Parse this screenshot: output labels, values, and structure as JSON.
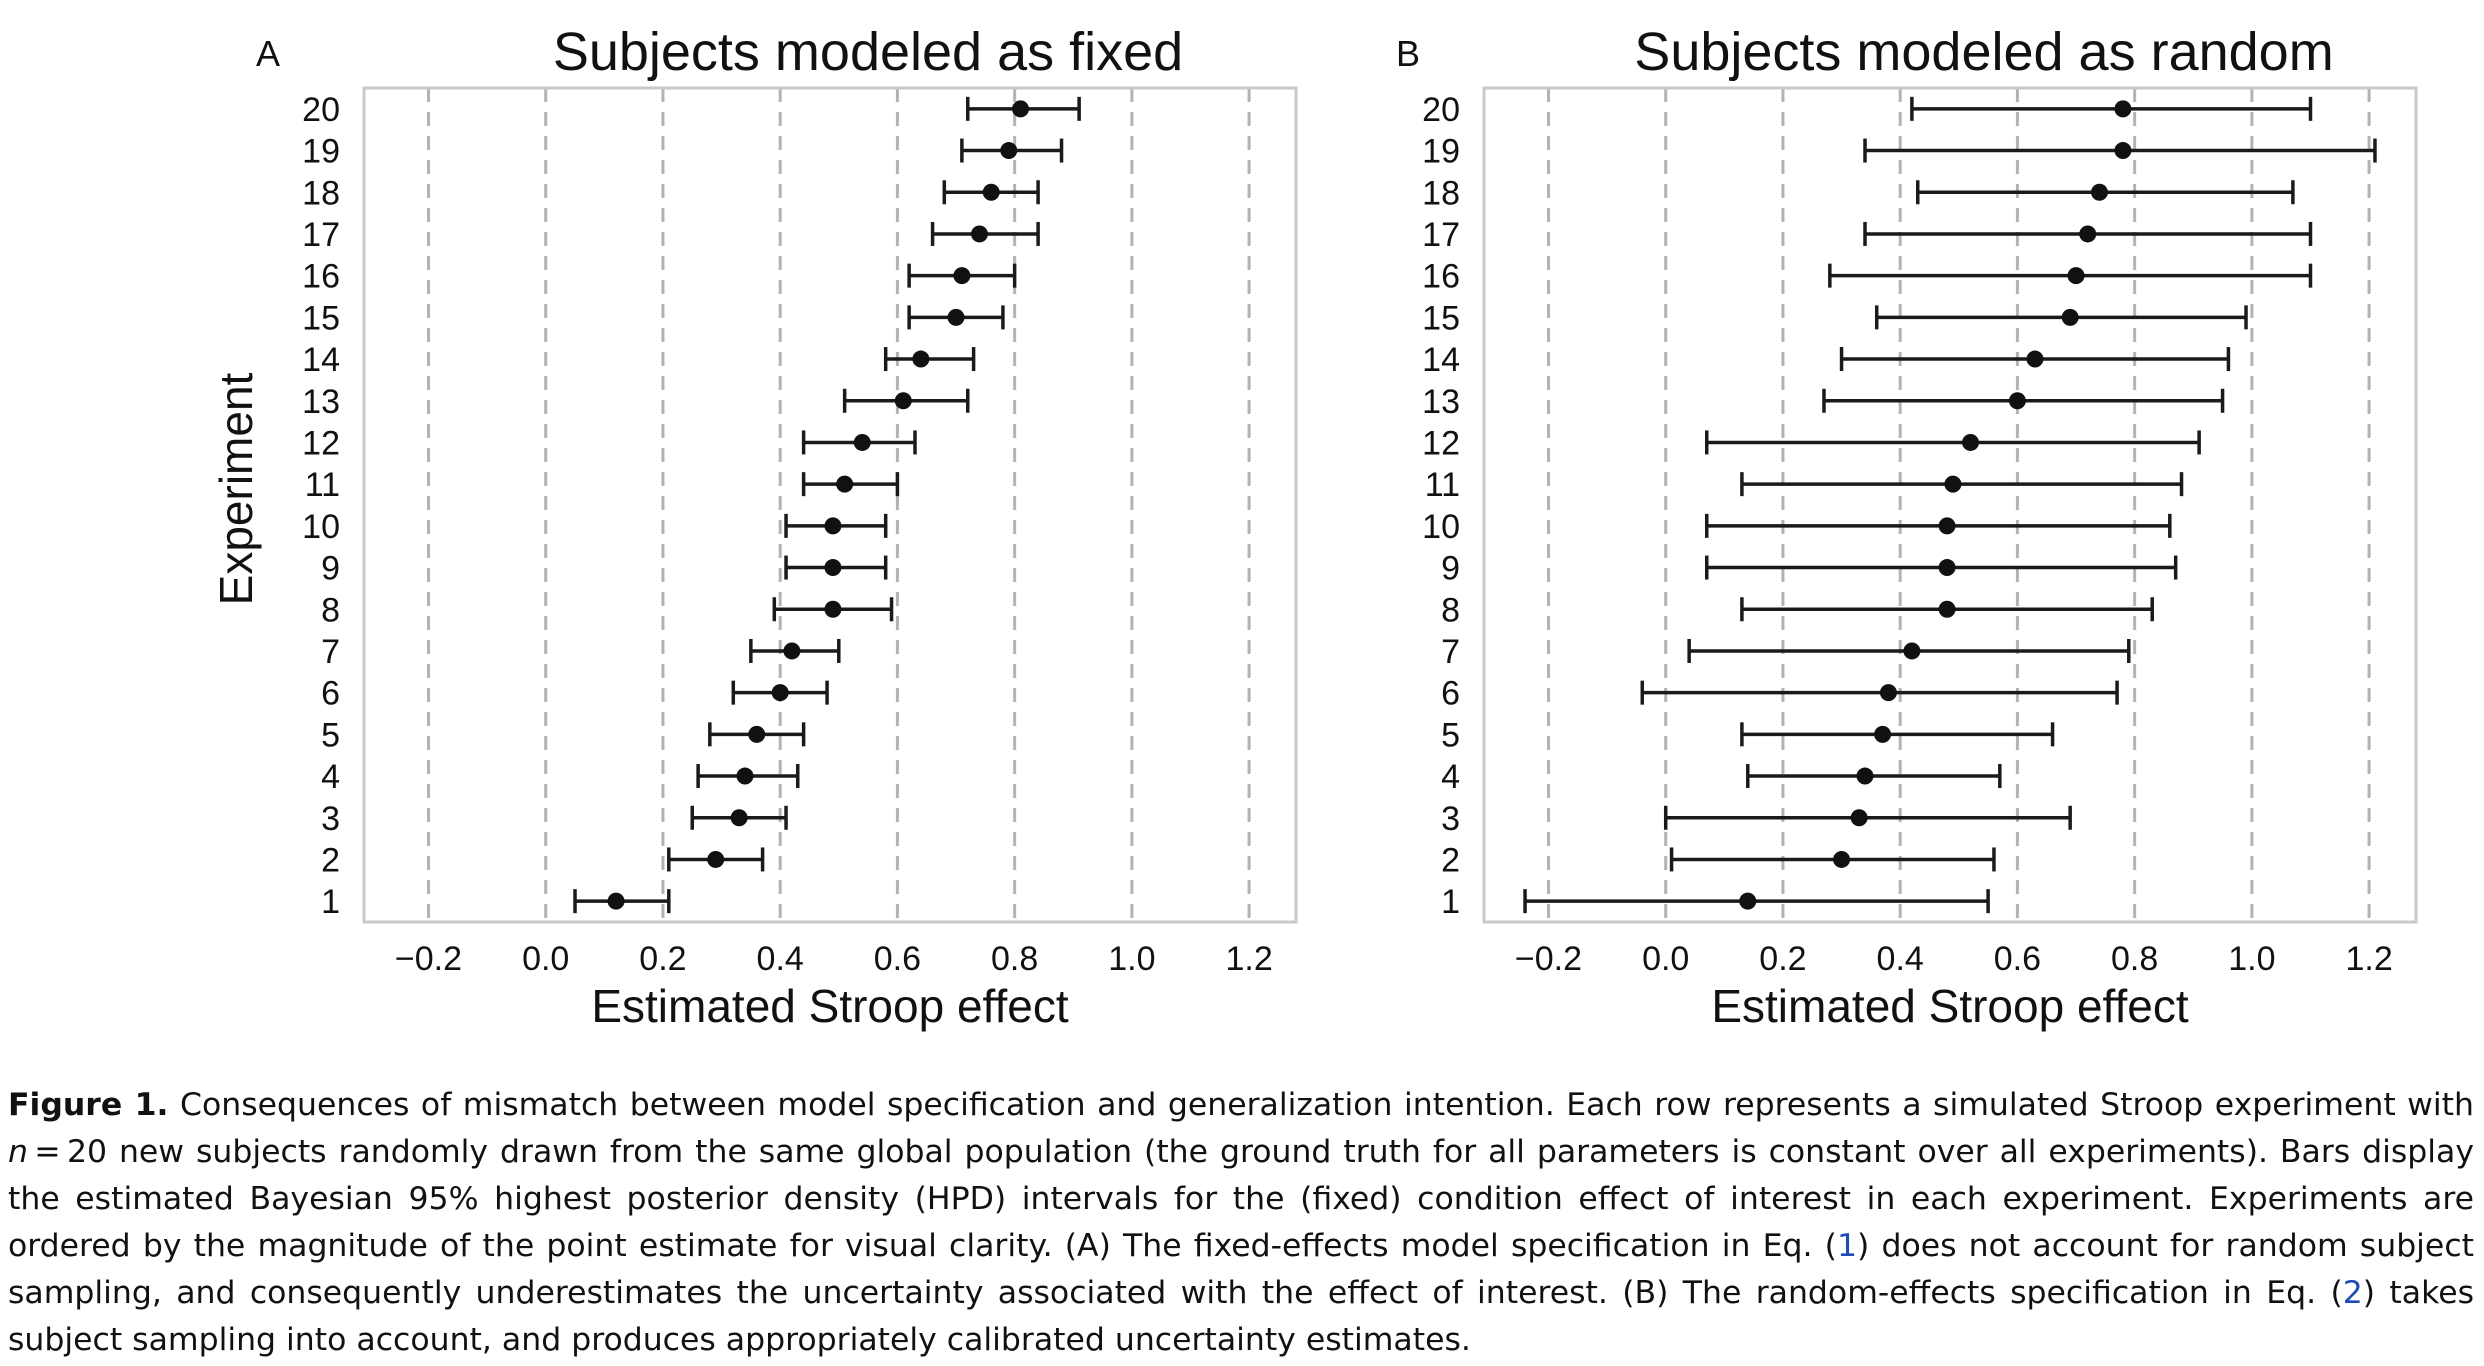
{
  "chart_data": [
    {
      "type": "scatter",
      "variant": "point-with-error-bars",
      "panel_letter": "A",
      "title": "Subjects modeled as fixed",
      "xlabel": "Estimated Stroop effect",
      "ylabel": "Experiment",
      "xlim": [
        -0.31,
        1.28
      ],
      "ylim": [
        0.5,
        20.5
      ],
      "xticks": [
        -0.2,
        0.0,
        0.2,
        0.4,
        0.6,
        0.8,
        1.0,
        1.2
      ],
      "xtick_labels": [
        "−0.2",
        "0.0",
        "0.2",
        "0.4",
        "0.6",
        "0.8",
        "1.0",
        "1.2"
      ],
      "yticks": [
        1,
        2,
        3,
        4,
        5,
        6,
        7,
        8,
        9,
        10,
        11,
        12,
        13,
        14,
        15,
        16,
        17,
        18,
        19,
        20
      ],
      "grid": "vertical dashed",
      "experiments": [
        {
          "y": 1,
          "estimate": 0.12,
          "lower": 0.05,
          "upper": 0.21
        },
        {
          "y": 2,
          "estimate": 0.29,
          "lower": 0.21,
          "upper": 0.37
        },
        {
          "y": 3,
          "estimate": 0.33,
          "lower": 0.25,
          "upper": 0.41
        },
        {
          "y": 4,
          "estimate": 0.34,
          "lower": 0.26,
          "upper": 0.43
        },
        {
          "y": 5,
          "estimate": 0.36,
          "lower": 0.28,
          "upper": 0.44
        },
        {
          "y": 6,
          "estimate": 0.4,
          "lower": 0.32,
          "upper": 0.48
        },
        {
          "y": 7,
          "estimate": 0.42,
          "lower": 0.35,
          "upper": 0.5
        },
        {
          "y": 8,
          "estimate": 0.49,
          "lower": 0.39,
          "upper": 0.59
        },
        {
          "y": 9,
          "estimate": 0.49,
          "lower": 0.41,
          "upper": 0.58
        },
        {
          "y": 10,
          "estimate": 0.49,
          "lower": 0.41,
          "upper": 0.58
        },
        {
          "y": 11,
          "estimate": 0.51,
          "lower": 0.44,
          "upper": 0.6
        },
        {
          "y": 12,
          "estimate": 0.54,
          "lower": 0.44,
          "upper": 0.63
        },
        {
          "y": 13,
          "estimate": 0.61,
          "lower": 0.51,
          "upper": 0.72
        },
        {
          "y": 14,
          "estimate": 0.64,
          "lower": 0.58,
          "upper": 0.73
        },
        {
          "y": 15,
          "estimate": 0.7,
          "lower": 0.62,
          "upper": 0.78
        },
        {
          "y": 16,
          "estimate": 0.71,
          "lower": 0.62,
          "upper": 0.8
        },
        {
          "y": 17,
          "estimate": 0.74,
          "lower": 0.66,
          "upper": 0.84
        },
        {
          "y": 18,
          "estimate": 0.76,
          "lower": 0.68,
          "upper": 0.84
        },
        {
          "y": 19,
          "estimate": 0.79,
          "lower": 0.71,
          "upper": 0.88
        },
        {
          "y": 20,
          "estimate": 0.81,
          "lower": 0.72,
          "upper": 0.91
        }
      ]
    },
    {
      "type": "scatter",
      "variant": "point-with-error-bars",
      "panel_letter": "B",
      "title": "Subjects modeled as random",
      "xlabel": "Estimated Stroop effect",
      "ylabel": "",
      "xlim": [
        -0.31,
        1.28
      ],
      "ylim": [
        0.5,
        20.5
      ],
      "xticks": [
        -0.2,
        0.0,
        0.2,
        0.4,
        0.6,
        0.8,
        1.0,
        1.2
      ],
      "xtick_labels": [
        "−0.2",
        "0.0",
        "0.2",
        "0.4",
        "0.6",
        "0.8",
        "1.0",
        "1.2"
      ],
      "yticks": [
        1,
        2,
        3,
        4,
        5,
        6,
        7,
        8,
        9,
        10,
        11,
        12,
        13,
        14,
        15,
        16,
        17,
        18,
        19,
        20
      ],
      "grid": "vertical dashed",
      "experiments": [
        {
          "y": 1,
          "estimate": 0.14,
          "lower": -0.24,
          "upper": 0.55
        },
        {
          "y": 2,
          "estimate": 0.3,
          "lower": 0.01,
          "upper": 0.56
        },
        {
          "y": 3,
          "estimate": 0.33,
          "lower": 0.0,
          "upper": 0.69
        },
        {
          "y": 4,
          "estimate": 0.34,
          "lower": 0.14,
          "upper": 0.57
        },
        {
          "y": 5,
          "estimate": 0.37,
          "lower": 0.13,
          "upper": 0.66
        },
        {
          "y": 6,
          "estimate": 0.38,
          "lower": -0.04,
          "upper": 0.77
        },
        {
          "y": 7,
          "estimate": 0.42,
          "lower": 0.04,
          "upper": 0.79
        },
        {
          "y": 8,
          "estimate": 0.48,
          "lower": 0.13,
          "upper": 0.83
        },
        {
          "y": 9,
          "estimate": 0.48,
          "lower": 0.07,
          "upper": 0.87
        },
        {
          "y": 10,
          "estimate": 0.48,
          "lower": 0.07,
          "upper": 0.86
        },
        {
          "y": 11,
          "estimate": 0.49,
          "lower": 0.13,
          "upper": 0.88
        },
        {
          "y": 12,
          "estimate": 0.52,
          "lower": 0.07,
          "upper": 0.91
        },
        {
          "y": 13,
          "estimate": 0.6,
          "lower": 0.27,
          "upper": 0.95
        },
        {
          "y": 14,
          "estimate": 0.63,
          "lower": 0.3,
          "upper": 0.96
        },
        {
          "y": 15,
          "estimate": 0.69,
          "lower": 0.36,
          "upper": 0.99
        },
        {
          "y": 16,
          "estimate": 0.7,
          "lower": 0.28,
          "upper": 1.1
        },
        {
          "y": 17,
          "estimate": 0.72,
          "lower": 0.34,
          "upper": 1.1
        },
        {
          "y": 18,
          "estimate": 0.74,
          "lower": 0.43,
          "upper": 1.07
        },
        {
          "y": 19,
          "estimate": 0.78,
          "lower": 0.34,
          "upper": 1.21
        },
        {
          "y": 20,
          "estimate": 0.78,
          "lower": 0.42,
          "upper": 1.1
        }
      ]
    }
  ],
  "caption": {
    "label": "Figure 1.",
    "text_1": " Consequences of mismatch between model specification and generalization intention. Each row represents a simulated Stroop experiment with ",
    "n_symbol": "n",
    "text_2": " = 20 new subjects randomly drawn from the same global population (the ground truth for all parameters is constant over all experiments). Bars display the estimated Bayesian 95% highest posterior density (HPD) intervals for the (fixed) condition effect of interest in each experiment. Experiments are ordered by the magnitude of the point estimate for visual clarity. (A) The fixed-effects model specification in Eq. (",
    "ref_1": "1",
    "text_3": ") does not account for random subject sampling, and consequently under­estimates the uncertainty associated with the effect of interest. (B) The random-effects specification in Eq. (",
    "ref_2": "2",
    "text_4": ") takes subject sampling into account, and produces appropriately calibrated uncertainty estimates."
  }
}
